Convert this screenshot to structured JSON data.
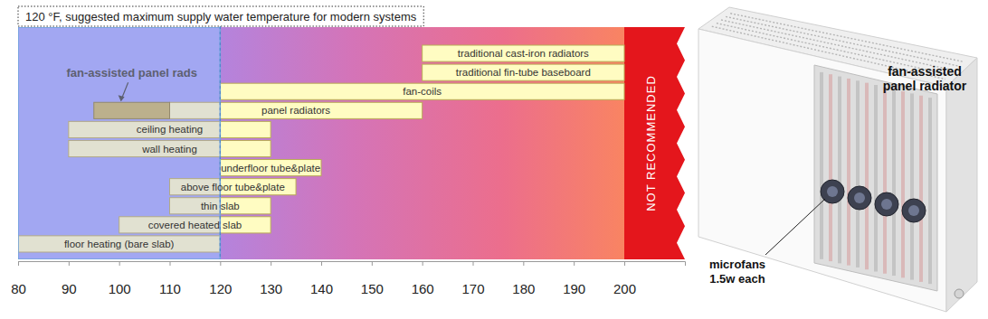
{
  "chart_data": {
    "type": "range_bar",
    "orientation": "horizontal",
    "categories": [
      "traditional cast-iron radiators",
      "traditional fin-tube baseboard",
      "fan-coils",
      "panel radiators",
      "ceiling heating",
      "wall heating",
      "underfloor tube&plate",
      "above floor tube&plate",
      "thin slab",
      "covered heated slab",
      "floor heating (bare slab)"
    ],
    "low": [
      160,
      160,
      120,
      110,
      90,
      90,
      120,
      110,
      110,
      100,
      80
    ],
    "high": [
      200,
      200,
      200,
      160,
      130,
      130,
      140,
      135,
      130,
      130,
      120
    ],
    "color": "#fffcc2",
    "xlim": [
      80,
      212
    ],
    "xticks": [
      80,
      90,
      100,
      110,
      120,
      130,
      140,
      150,
      160,
      170,
      180,
      190,
      200
    ],
    "tick_labels": "x",
    "inset_bars": [
      {
        "label": "fan-assisted panel rads",
        "low": 95,
        "high": 110,
        "row": "panel radiators",
        "color": "#c9b45c"
      }
    ],
    "zones": [
      {
        "from": 80,
        "to": 120,
        "color": "#a3a7f2"
      },
      {
        "from": 200,
        "to": 212,
        "label": "NOT RECOMMENDED",
        "color": "#e4161c"
      }
    ],
    "annotations": [
      {
        "text": "120 °F, suggested maximum supply water temperature for modern systems",
        "x": 120
      }
    ]
  },
  "illustration": {
    "title": [
      "fan-assisted",
      "panel radiator"
    ],
    "callout": [
      "microfans",
      "1.5w each"
    ]
  }
}
